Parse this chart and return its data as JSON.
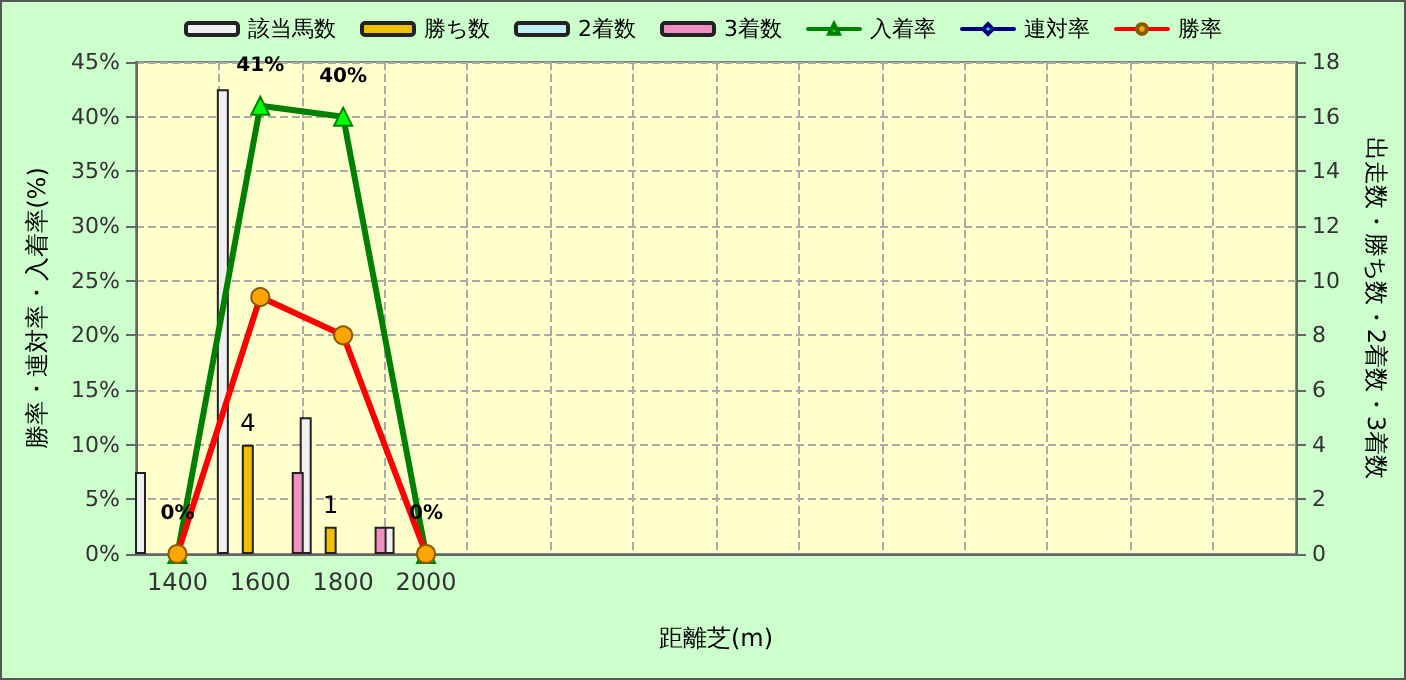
{
  "chart_data": {
    "type": "bar",
    "xlabel": "距離芝(m)",
    "ylabel": "勝率・連対率・入着率(%)",
    "y2label": "出走数・勝ち数・2着数・3着数",
    "categories": [
      "1400",
      "1600",
      "1800",
      "2000",
      null,
      null,
      null,
      null,
      null,
      null,
      null,
      null,
      null,
      null
    ],
    "series": [
      {
        "name": "該当馬数",
        "axis": "y2",
        "color": "#f0f0f0",
        "values": [
          3,
          17,
          5,
          1,
          null,
          null,
          null,
          null,
          null,
          null,
          null,
          null,
          null,
          null
        ]
      },
      {
        "name": "勝ち数",
        "axis": "y2",
        "color": "#f0c000",
        "values": [
          0,
          4,
          1,
          0,
          null,
          null,
          null,
          null,
          null,
          null,
          null,
          null,
          null,
          null
        ],
        "value_labels": [
          null,
          "4",
          "1",
          null,
          null,
          null,
          null,
          null,
          null,
          null,
          null,
          null,
          null,
          null
        ]
      },
      {
        "name": "2着数",
        "axis": "y2",
        "color": "#c0f0f0",
        "values": [
          0,
          0,
          0,
          0,
          null,
          null,
          null,
          null,
          null,
          null,
          null,
          null,
          null,
          null
        ]
      },
      {
        "name": "3着数",
        "axis": "y2",
        "color": "#f090c0",
        "values": [
          0,
          3,
          1,
          0,
          null,
          null,
          null,
          null,
          null,
          null,
          null,
          null,
          null,
          null
        ]
      },
      {
        "name": "入着率",
        "type": "line",
        "color": "#008000",
        "marker": "triangle",
        "values": [
          0,
          41,
          40,
          0,
          null,
          null,
          null,
          null,
          null,
          null,
          null,
          null,
          null,
          null
        ],
        "value_labels": [
          "0%",
          "41%",
          "40%",
          "0%",
          null,
          null,
          null,
          null,
          null,
          null,
          null,
          null,
          null,
          null
        ]
      },
      {
        "name": "連対率",
        "type": "line",
        "color": "#000080",
        "marker": "diamond",
        "values": [
          null,
          null,
          null,
          null,
          null,
          null,
          null,
          null,
          null,
          null,
          null,
          null,
          null,
          null
        ]
      },
      {
        "name": "勝率",
        "type": "line",
        "color": "#ff0000",
        "marker": "circle",
        "values": [
          0,
          23.5,
          20,
          0,
          null,
          null,
          null,
          null,
          null,
          null,
          null,
          null,
          null,
          null
        ]
      }
    ],
    "ylim": [
      0,
      45
    ],
    "yticks": [
      {
        "value": 0,
        "label": "0%"
      },
      {
        "value": 5,
        "label": "5%"
      },
      {
        "value": 10,
        "label": "10%"
      },
      {
        "value": 15,
        "label": "15%"
      },
      {
        "value": 20,
        "label": "20%"
      },
      {
        "value": 25,
        "label": "25%"
      },
      {
        "value": 30,
        "label": "30%"
      },
      {
        "value": 35,
        "label": "35%"
      },
      {
        "value": 40,
        "label": "40%"
      },
      {
        "value": 45,
        "label": "45%"
      }
    ],
    "y2lim": [
      0,
      18
    ],
    "y2ticks": [
      0,
      2,
      4,
      6,
      8,
      10,
      12,
      14,
      16,
      18
    ],
    "grid": true,
    "legend": "top",
    "line_style": "solid"
  }
}
